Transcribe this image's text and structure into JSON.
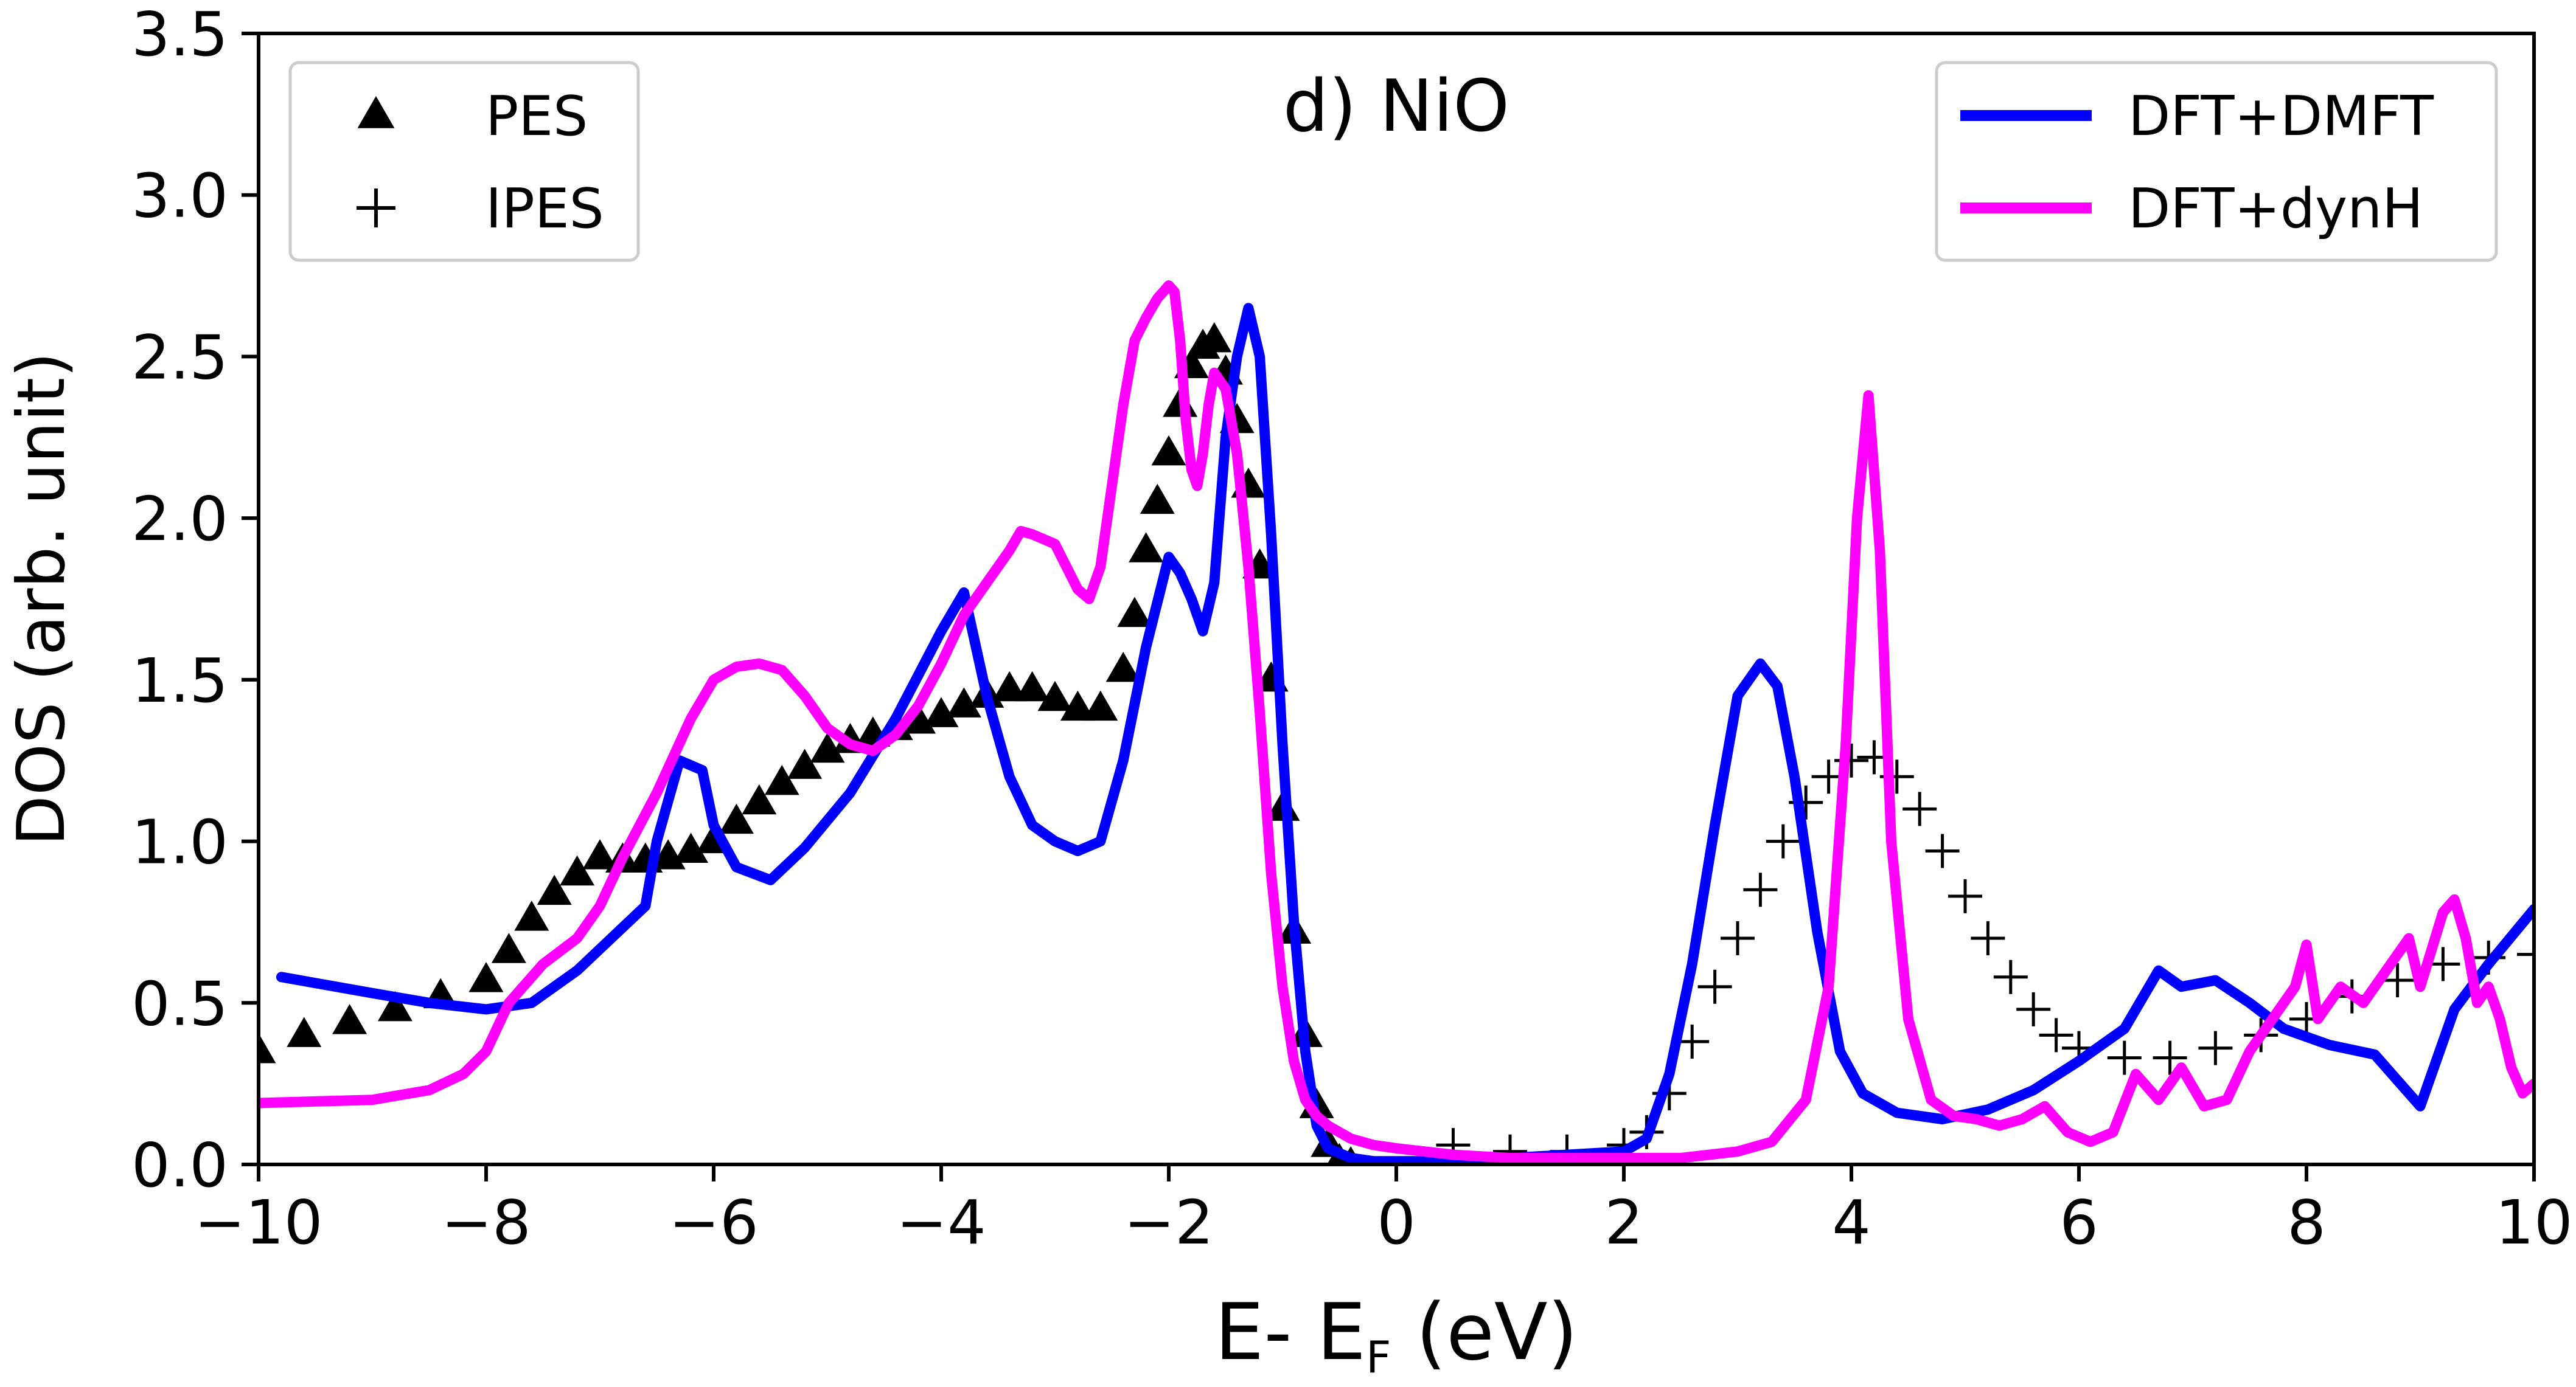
{
  "chart_data": {
    "type": "line",
    "title": "d) NiO",
    "xlabel": "E- E_F  (eV)",
    "xlabel_parts": {
      "main": "E- E",
      "sub": "F",
      "unit": " (eV)"
    },
    "ylabel": "DOS (arb. unit)",
    "xlim": [
      -10,
      10
    ],
    "ylim": [
      0,
      3.5
    ],
    "xticks": [
      -10,
      -8,
      -6,
      -4,
      -2,
      0,
      2,
      4,
      6,
      8,
      10
    ],
    "xtick_labels": [
      "−10",
      "−8",
      "−6",
      "−4",
      "−2",
      "0",
      "2",
      "4",
      "6",
      "8",
      "10"
    ],
    "yticks": [
      0,
      0.5,
      1.0,
      1.5,
      2.0,
      2.5,
      3.0,
      3.5
    ],
    "ytick_labels": [
      "0.0",
      "0.5",
      "1.0",
      "1.5",
      "2.0",
      "2.5",
      "3.0",
      "3.5"
    ],
    "legend_left": {
      "position": "top-left",
      "entries": [
        {
          "label": "PES",
          "marker": "triangle",
          "color": "#000000"
        },
        {
          "label": "IPES",
          "marker": "plus",
          "color": "#000000"
        }
      ]
    },
    "legend_right": {
      "position": "top-right",
      "entries": [
        {
          "label": "DFT+DMFT",
          "color": "#0000ff"
        },
        {
          "label": "DFT+dynH",
          "color": "#ff00ff"
        }
      ]
    },
    "series": [
      {
        "name": "PES",
        "style": "triangle-markers",
        "color": "#000000",
        "x": [
          -10.0,
          -9.6,
          -9.2,
          -8.8,
          -8.4,
          -8.0,
          -7.8,
          -7.6,
          -7.4,
          -7.2,
          -7.0,
          -6.8,
          -6.6,
          -6.4,
          -6.2,
          -6.0,
          -5.8,
          -5.6,
          -5.4,
          -5.2,
          -5.0,
          -4.8,
          -4.6,
          -4.4,
          -4.2,
          -4.0,
          -3.8,
          -3.6,
          -3.4,
          -3.2,
          -3.0,
          -2.8,
          -2.6,
          -2.4,
          -2.3,
          -2.2,
          -2.1,
          -2.0,
          -1.9,
          -1.8,
          -1.7,
          -1.6,
          -1.5,
          -1.4,
          -1.3,
          -1.2,
          -1.1,
          -1.0,
          -0.9,
          -0.8,
          -0.7,
          -0.6,
          -0.5,
          -0.4
        ],
        "y": [
          0.35,
          0.4,
          0.44,
          0.48,
          0.52,
          0.57,
          0.66,
          0.76,
          0.84,
          0.9,
          0.95,
          0.94,
          0.94,
          0.95,
          0.97,
          1.0,
          1.06,
          1.12,
          1.18,
          1.23,
          1.28,
          1.31,
          1.33,
          1.35,
          1.37,
          1.39,
          1.42,
          1.45,
          1.47,
          1.47,
          1.44,
          1.41,
          1.41,
          1.53,
          1.7,
          1.9,
          2.05,
          2.2,
          2.35,
          2.47,
          2.53,
          2.55,
          2.45,
          2.3,
          2.1,
          1.85,
          1.5,
          1.1,
          0.72,
          0.4,
          0.18,
          0.06,
          0.01,
          0.0
        ]
      },
      {
        "name": "IPES",
        "style": "plus-markers",
        "color": "#000000",
        "x": [
          0.5,
          1.0,
          1.5,
          2.0,
          2.2,
          2.4,
          2.6,
          2.8,
          3.0,
          3.2,
          3.4,
          3.6,
          3.8,
          4.0,
          4.2,
          4.4,
          4.6,
          4.8,
          5.0,
          5.2,
          5.4,
          5.6,
          5.8,
          6.0,
          6.4,
          6.8,
          7.2,
          7.6,
          8.0,
          8.4,
          8.8,
          9.2,
          9.6,
          10.0
        ],
        "y": [
          0.06,
          0.04,
          0.04,
          0.06,
          0.1,
          0.22,
          0.38,
          0.55,
          0.7,
          0.85,
          1.0,
          1.12,
          1.2,
          1.25,
          1.26,
          1.2,
          1.1,
          0.97,
          0.83,
          0.7,
          0.58,
          0.48,
          0.4,
          0.36,
          0.33,
          0.33,
          0.36,
          0.4,
          0.45,
          0.52,
          0.57,
          0.62,
          0.64,
          0.65
        ]
      },
      {
        "name": "DFT+DMFT",
        "style": "line",
        "color": "#0000ff",
        "x": [
          -9.8,
          -9.0,
          -8.5,
          -8.0,
          -7.6,
          -7.2,
          -6.9,
          -6.6,
          -6.5,
          -6.3,
          -6.1,
          -6.0,
          -5.8,
          -5.5,
          -5.2,
          -4.8,
          -4.4,
          -4.0,
          -3.8,
          -3.6,
          -3.4,
          -3.2,
          -3.0,
          -2.8,
          -2.6,
          -2.4,
          -2.2,
          -2.0,
          -1.9,
          -1.8,
          -1.7,
          -1.6,
          -1.5,
          -1.4,
          -1.3,
          -1.2,
          -1.1,
          -1.0,
          -0.9,
          -0.8,
          -0.7,
          -0.6,
          -0.4,
          -0.2,
          0.0,
          0.5,
          1.0,
          1.5,
          2.0,
          2.2,
          2.4,
          2.6,
          2.8,
          3.0,
          3.2,
          3.35,
          3.5,
          3.7,
          3.9,
          4.1,
          4.4,
          4.8,
          5.2,
          5.6,
          6.0,
          6.4,
          6.7,
          6.9,
          7.2,
          7.5,
          7.8,
          8.2,
          8.6,
          9.0,
          9.3,
          9.6,
          10.0
        ],
        "y": [
          0.58,
          0.53,
          0.5,
          0.48,
          0.5,
          0.6,
          0.7,
          0.8,
          1.0,
          1.25,
          1.22,
          1.05,
          0.92,
          0.88,
          0.98,
          1.15,
          1.38,
          1.65,
          1.77,
          1.45,
          1.2,
          1.05,
          1.0,
          0.97,
          1.0,
          1.25,
          1.6,
          1.88,
          1.83,
          1.75,
          1.65,
          1.8,
          2.25,
          2.5,
          2.65,
          2.5,
          1.95,
          1.3,
          0.75,
          0.35,
          0.12,
          0.05,
          0.02,
          0.01,
          0.01,
          0.01,
          0.02,
          0.03,
          0.04,
          0.08,
          0.28,
          0.62,
          1.05,
          1.45,
          1.55,
          1.48,
          1.2,
          0.72,
          0.35,
          0.22,
          0.16,
          0.14,
          0.17,
          0.23,
          0.32,
          0.42,
          0.6,
          0.55,
          0.57,
          0.5,
          0.42,
          0.37,
          0.34,
          0.18,
          0.48,
          0.62,
          0.79
        ]
      },
      {
        "name": "DFT+dynH",
        "style": "line",
        "color": "#ff00ff",
        "x": [
          -10.0,
          -9.0,
          -8.5,
          -8.2,
          -8.0,
          -7.8,
          -7.5,
          -7.2,
          -7.0,
          -6.8,
          -6.5,
          -6.2,
          -6.0,
          -5.8,
          -5.6,
          -5.4,
          -5.2,
          -5.0,
          -4.8,
          -4.6,
          -4.4,
          -4.2,
          -4.0,
          -3.8,
          -3.6,
          -3.4,
          -3.3,
          -3.2,
          -3.0,
          -2.9,
          -2.8,
          -2.7,
          -2.6,
          -2.5,
          -2.4,
          -2.3,
          -2.2,
          -2.1,
          -2.0,
          -1.95,
          -1.9,
          -1.85,
          -1.8,
          -1.75,
          -1.7,
          -1.65,
          -1.6,
          -1.5,
          -1.4,
          -1.3,
          -1.2,
          -1.1,
          -1.0,
          -0.9,
          -0.8,
          -0.7,
          -0.6,
          -0.4,
          -0.2,
          0.0,
          0.5,
          1.0,
          1.5,
          2.0,
          2.5,
          3.0,
          3.3,
          3.6,
          3.8,
          3.95,
          4.05,
          4.15,
          4.25,
          4.35,
          4.5,
          4.7,
          4.9,
          5.1,
          5.3,
          5.5,
          5.7,
          5.9,
          6.1,
          6.3,
          6.5,
          6.7,
          6.9,
          7.1,
          7.3,
          7.5,
          7.7,
          7.9,
          8.0,
          8.1,
          8.3,
          8.5,
          8.7,
          8.9,
          9.0,
          9.2,
          9.3,
          9.4,
          9.5,
          9.6,
          9.7,
          9.8,
          9.9,
          10.0
        ],
        "y": [
          0.19,
          0.2,
          0.23,
          0.28,
          0.35,
          0.5,
          0.62,
          0.7,
          0.8,
          0.95,
          1.15,
          1.38,
          1.5,
          1.54,
          1.55,
          1.53,
          1.45,
          1.35,
          1.3,
          1.28,
          1.33,
          1.42,
          1.55,
          1.7,
          1.8,
          1.9,
          1.96,
          1.95,
          1.92,
          1.85,
          1.78,
          1.75,
          1.85,
          2.1,
          2.35,
          2.55,
          2.62,
          2.68,
          2.72,
          2.7,
          2.55,
          2.3,
          2.15,
          2.1,
          2.2,
          2.35,
          2.45,
          2.4,
          2.2,
          1.85,
          1.4,
          0.9,
          0.55,
          0.32,
          0.2,
          0.15,
          0.12,
          0.08,
          0.06,
          0.05,
          0.03,
          0.02,
          0.02,
          0.02,
          0.02,
          0.04,
          0.07,
          0.2,
          0.55,
          1.3,
          2.0,
          2.38,
          1.9,
          1.0,
          0.45,
          0.2,
          0.15,
          0.14,
          0.12,
          0.14,
          0.18,
          0.1,
          0.07,
          0.1,
          0.28,
          0.2,
          0.3,
          0.18,
          0.2,
          0.35,
          0.45,
          0.55,
          0.68,
          0.45,
          0.55,
          0.5,
          0.6,
          0.7,
          0.55,
          0.78,
          0.82,
          0.7,
          0.5,
          0.55,
          0.45,
          0.3,
          0.22,
          0.25
        ]
      }
    ]
  }
}
